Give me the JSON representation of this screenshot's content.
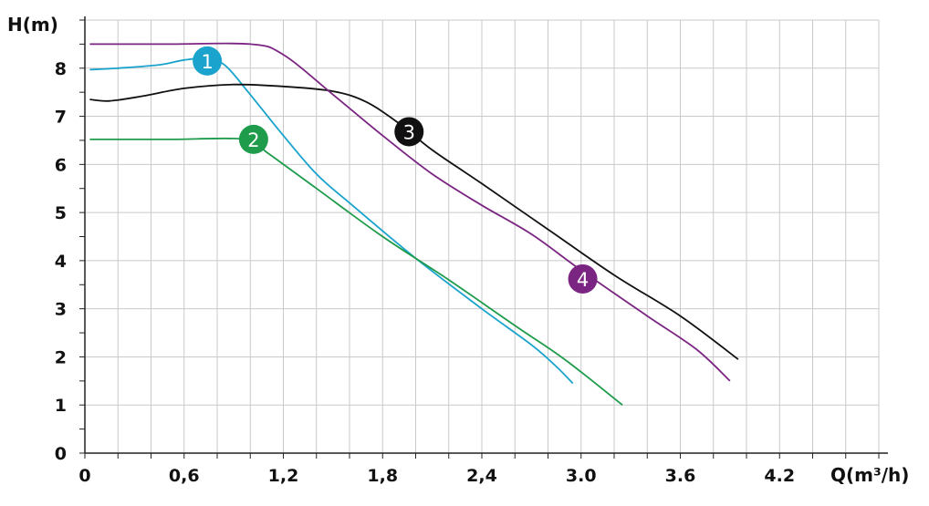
{
  "chart_data": {
    "type": "line",
    "ylabel": "H(m)",
    "xlabel": "Q(m³/h)",
    "xlim": [
      0,
      4.8
    ],
    "ylim": [
      0,
      9
    ],
    "x_ticks": [
      {
        "value": 0,
        "label": "0"
      },
      {
        "value": 0.6,
        "label": "0,6"
      },
      {
        "value": 1.2,
        "label": "1,2"
      },
      {
        "value": 1.8,
        "label": "1,8"
      },
      {
        "value": 2.4,
        "label": "2,4"
      },
      {
        "value": 3.0,
        "label": "3.0"
      },
      {
        "value": 3.6,
        "label": "3.6"
      },
      {
        "value": 4.2,
        "label": "4.2"
      }
    ],
    "y_ticks": [
      {
        "value": 0,
        "label": "0"
      },
      {
        "value": 1,
        "label": "1"
      },
      {
        "value": 2,
        "label": "2"
      },
      {
        "value": 3,
        "label": "3"
      },
      {
        "value": 4,
        "label": "4"
      },
      {
        "value": 5,
        "label": "5"
      },
      {
        "value": 6,
        "label": "6"
      },
      {
        "value": 7,
        "label": "7"
      },
      {
        "value": 8,
        "label": "8"
      }
    ],
    "grid": true,
    "series": [
      {
        "marker": "1",
        "color": "#1aa3cc",
        "marker_at": [
          0.74,
          8.15
        ],
        "points": [
          [
            0.03,
            7.97
          ],
          [
            0.2,
            8.0
          ],
          [
            0.45,
            8.07
          ],
          [
            0.6,
            8.17
          ],
          [
            0.74,
            8.2
          ],
          [
            0.85,
            8.05
          ],
          [
            1.0,
            7.45
          ],
          [
            1.2,
            6.6
          ],
          [
            1.4,
            5.8
          ],
          [
            1.6,
            5.2
          ],
          [
            2.0,
            4.05
          ],
          [
            2.4,
            3.0
          ],
          [
            2.7,
            2.25
          ],
          [
            2.85,
            1.8
          ],
          [
            2.95,
            1.45
          ]
        ]
      },
      {
        "marker": "2",
        "color": "#1e9b4b",
        "marker_at": [
          1.02,
          6.52
        ],
        "points": [
          [
            0.03,
            6.52
          ],
          [
            0.5,
            6.52
          ],
          [
            0.98,
            6.52
          ],
          [
            1.1,
            6.25
          ],
          [
            1.4,
            5.5
          ],
          [
            1.8,
            4.5
          ],
          [
            2.2,
            3.6
          ],
          [
            2.6,
            2.65
          ],
          [
            2.9,
            1.95
          ],
          [
            3.25,
            1.0
          ]
        ]
      },
      {
        "marker": "3",
        "color": "#111111",
        "marker_at": [
          1.96,
          6.68
        ],
        "points": [
          [
            0.03,
            7.35
          ],
          [
            0.15,
            7.32
          ],
          [
            0.35,
            7.42
          ],
          [
            0.6,
            7.58
          ],
          [
            0.9,
            7.66
          ],
          [
            1.2,
            7.62
          ],
          [
            1.5,
            7.52
          ],
          [
            1.7,
            7.3
          ],
          [
            1.9,
            6.85
          ],
          [
            2.1,
            6.3
          ],
          [
            2.4,
            5.6
          ],
          [
            2.8,
            4.65
          ],
          [
            3.2,
            3.7
          ],
          [
            3.6,
            2.85
          ],
          [
            3.95,
            1.95
          ]
        ]
      },
      {
        "marker": "4",
        "color": "#7b2582",
        "marker_at": [
          3.01,
          3.62
        ],
        "points": [
          [
            0.03,
            8.5
          ],
          [
            0.5,
            8.5
          ],
          [
            1.0,
            8.5
          ],
          [
            1.2,
            8.28
          ],
          [
            1.5,
            7.45
          ],
          [
            1.8,
            6.6
          ],
          [
            2.1,
            5.8
          ],
          [
            2.4,
            5.15
          ],
          [
            2.7,
            4.55
          ],
          [
            3.0,
            3.8
          ],
          [
            3.4,
            2.85
          ],
          [
            3.7,
            2.15
          ],
          [
            3.9,
            1.5
          ]
        ]
      }
    ]
  }
}
